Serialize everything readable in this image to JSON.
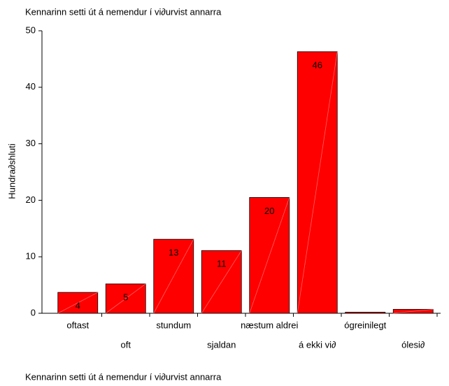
{
  "chart_data": {
    "type": "bar",
    "title": "Kennarinn setti út á nemendur í vi∂urvist annarra",
    "x_label": "Kennarinn setti út á nemendur í vi∂urvist annarra",
    "y_label": "Hundra∂shluti",
    "categories": [
      "oftast",
      "oft",
      "stundum",
      "sjaldan",
      "næstum aldrei",
      "á ekki vi∂",
      "ógreinilegt",
      "ólesi∂"
    ],
    "values": [
      3.7,
      5.2,
      13.1,
      11.1,
      20.5,
      46.3,
      0.2,
      0.7
    ],
    "value_labels": [
      "4",
      "5",
      "13",
      "11",
      "20",
      "46",
      null,
      null
    ],
    "color": "#ff0000",
    "ylim": [
      0,
      50
    ],
    "yticks": [
      0,
      10,
      20,
      30,
      40,
      50
    ],
    "grid": false
  }
}
